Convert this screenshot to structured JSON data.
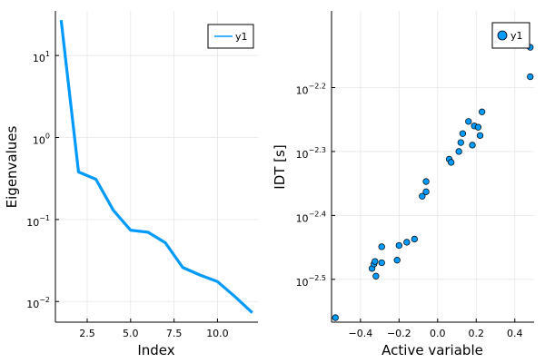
{
  "chart_data": [
    {
      "type": "line",
      "xlabel": "Index",
      "ylabel": "Eigenvalues",
      "yscale": "log10",
      "xlim": [
        0.67,
        12.33
      ],
      "ylim": [
        0.0056,
        35
      ],
      "grid": true,
      "legend_position": "top-right",
      "x_ticks": [
        2.5,
        5.0,
        7.5,
        10.0
      ],
      "x_tick_labels": [
        "2.5",
        "5.0",
        "7.5",
        "10.0"
      ],
      "y_ticks": [
        0.01,
        0.1,
        1,
        10
      ],
      "y_tick_labels": [
        {
          "base": "10",
          "exp": "-2"
        },
        {
          "base": "10",
          "exp": "-1"
        },
        {
          "base": "10",
          "exp": "0"
        },
        {
          "base": "10",
          "exp": "1"
        }
      ],
      "color": "#009AFA",
      "series": [
        {
          "name": "y1",
          "x": [
            1,
            2,
            3,
            4,
            5,
            6,
            7,
            8,
            9,
            10,
            11,
            12
          ],
          "values": [
            27,
            0.38,
            0.31,
            0.13,
            0.074,
            0.07,
            0.052,
            0.026,
            0.021,
            0.0175,
            0.0115,
            0.0073
          ]
        }
      ]
    },
    {
      "type": "scatter",
      "xlabel": "Active variable",
      "ylabel": "IDT [s]",
      "yscale": "log10",
      "xlim": [
        -0.55,
        0.5
      ],
      "ylim": [
        -2.567,
        -2.08
      ],
      "grid": true,
      "legend_position": "top-right",
      "x_ticks": [
        -0.4,
        -0.2,
        0.0,
        0.2,
        0.4
      ],
      "x_tick_labels": [
        "-0.4",
        "-0.2",
        "0.0",
        "0.2",
        "0.4"
      ],
      "y_ticks": [
        -2.5,
        -2.4,
        -2.3,
        -2.2
      ],
      "y_tick_labels": [
        {
          "base": "10",
          "exp": "-2.5"
        },
        {
          "base": "10",
          "exp": "-2.4"
        },
        {
          "base": "10",
          "exp": "-2.3"
        },
        {
          "base": "10",
          "exp": "-2.2"
        }
      ],
      "color": "#009AFA",
      "series": [
        {
          "name": "y1",
          "points": [
            [
              -0.53,
              -2.56
            ],
            [
              -0.34,
              -2.483
            ],
            [
              -0.33,
              -2.476
            ],
            [
              -0.325,
              -2.472
            ],
            [
              -0.32,
              -2.495
            ],
            [
              -0.29,
              -2.474
            ],
            [
              -0.29,
              -2.449
            ],
            [
              -0.21,
              -2.47
            ],
            [
              -0.2,
              -2.447
            ],
            [
              -0.16,
              -2.442
            ],
            [
              -0.12,
              -2.437
            ],
            [
              -0.08,
              -2.37
            ],
            [
              -0.06,
              -2.363
            ],
            [
              -0.06,
              -2.347
            ],
            [
              0.06,
              -2.312
            ],
            [
              0.07,
              -2.317
            ],
            [
              0.11,
              -2.3
            ],
            [
              0.12,
              -2.286
            ],
            [
              0.13,
              -2.272
            ],
            [
              0.16,
              -2.253
            ],
            [
              0.18,
              -2.29
            ],
            [
              0.19,
              -2.26
            ],
            [
              0.21,
              -2.262
            ],
            [
              0.22,
              -2.275
            ],
            [
              0.23,
              -2.238
            ],
            [
              0.48,
              -2.137
            ],
            [
              0.48,
              -2.183
            ]
          ]
        }
      ]
    }
  ]
}
